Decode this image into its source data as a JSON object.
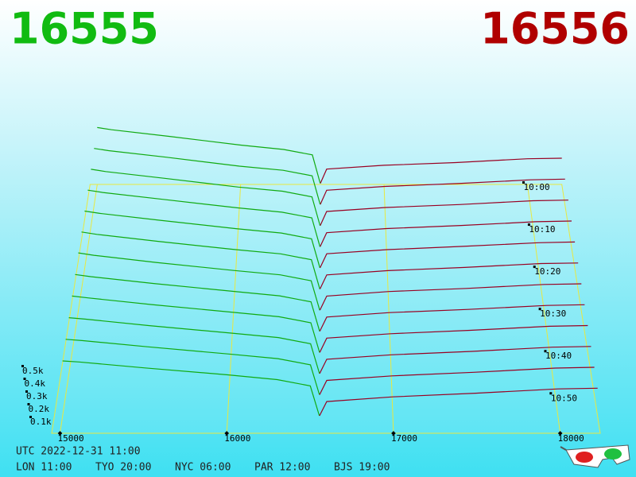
{
  "header": {
    "bid": "16555",
    "ask": "16556"
  },
  "chart_data": {
    "type": "depth3d",
    "bid_prices": [
      15000,
      15100,
      15500,
      16000,
      16300,
      16500,
      16555
    ],
    "ask_prices": [
      16556,
      16600,
      17000,
      17500,
      18000,
      18240
    ],
    "times": [
      0,
      5,
      10,
      15,
      20,
      25,
      30,
      35,
      40,
      45,
      50,
      55
    ],
    "bids": {
      "color": "#11aa11",
      "values": [
        [
          520,
          500,
          440,
          360,
          320,
          270,
          10
        ],
        [
          515,
          495,
          435,
          355,
          318,
          268,
          10
        ],
        [
          510,
          490,
          430,
          352,
          315,
          265,
          8
        ],
        [
          505,
          485,
          425,
          350,
          312,
          262,
          8
        ],
        [
          500,
          480,
          420,
          348,
          310,
          260,
          8
        ],
        [
          495,
          475,
          415,
          345,
          308,
          258,
          6
        ],
        [
          490,
          470,
          410,
          342,
          305,
          255,
          6
        ],
        [
          480,
          462,
          405,
          340,
          302,
          252,
          6
        ],
        [
          470,
          455,
          400,
          338,
          300,
          250,
          5
        ],
        [
          460,
          448,
          395,
          335,
          298,
          248,
          5
        ],
        [
          450,
          440,
          390,
          332,
          295,
          245,
          5
        ],
        [
          440,
          432,
          385,
          330,
          292,
          242,
          5
        ]
      ]
    },
    "asks": {
      "color": "#990022",
      "values": [
        [
          10,
          140,
          175,
          200,
          235,
          240
        ],
        [
          10,
          138,
          172,
          198,
          232,
          238
        ],
        [
          9,
          135,
          170,
          196,
          230,
          236
        ],
        [
          9,
          132,
          168,
          195,
          228,
          234
        ],
        [
          8,
          130,
          166,
          194,
          226,
          232
        ],
        [
          8,
          128,
          165,
          192,
          225,
          230
        ],
        [
          7,
          126,
          164,
          190,
          224,
          229
        ],
        [
          7,
          125,
          162,
          189,
          222,
          228
        ],
        [
          6,
          124,
          160,
          188,
          221,
          227
        ],
        [
          6,
          122,
          158,
          186,
          220,
          226
        ],
        [
          5,
          120,
          156,
          185,
          219,
          225
        ],
        [
          5,
          118,
          155,
          184,
          218,
          224
        ]
      ]
    },
    "xlim": [
      14950,
      18240
    ],
    "xticks": [
      15000,
      16000,
      17000,
      18000
    ],
    "zlim": [
      0,
      600
    ],
    "zticks": [
      {
        "value": 100,
        "label": "0.1k"
      },
      {
        "value": 200,
        "label": "0.2k"
      },
      {
        "value": 300,
        "label": "0.3k"
      },
      {
        "value": 400,
        "label": "0.4k"
      },
      {
        "value": 500,
        "label": "0.5k"
      }
    ],
    "tlim": [
      0,
      59
    ],
    "tticks": [
      {
        "value": 0,
        "label": "10:00"
      },
      {
        "value": 10,
        "label": "10:10"
      },
      {
        "value": 20,
        "label": "10:20"
      },
      {
        "value": 30,
        "label": "10:30"
      },
      {
        "value": 40,
        "label": "10:40"
      },
      {
        "value": 50,
        "label": "10:50"
      }
    ]
  },
  "footer": {
    "utc": "UTC 2022-12-31 11:00",
    "cities": [
      "LON 11:00",
      "TYO 20:00",
      "NYC 06:00",
      "PAR 12:00",
      "BJS 19:00"
    ]
  }
}
